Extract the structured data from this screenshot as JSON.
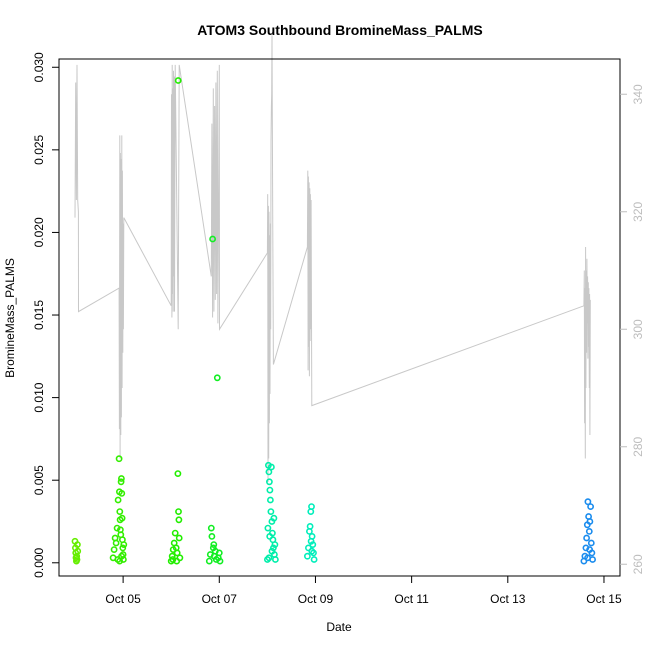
{
  "chart_data": {
    "type": "scatter",
    "title": "ATOM3 Southbound BromineMass_PALMS",
    "xlabel": "Date",
    "ylabel": "BromineMass_PALMS",
    "xlim": [
      "2017-10-03T16:00",
      "2017-10-15T08:00"
    ],
    "ylim": [
      -0.0008,
      0.0305
    ],
    "xticks": [
      {
        "date": "2017-10-05",
        "label": "Oct 05"
      },
      {
        "date": "2017-10-07",
        "label": "Oct 07"
      },
      {
        "date": "2017-10-09",
        "label": "Oct 09"
      },
      {
        "date": "2017-10-11",
        "label": "Oct 11"
      },
      {
        "date": "2017-10-13",
        "label": "Oct 13"
      },
      {
        "date": "2017-10-15",
        "label": "Oct 15"
      }
    ],
    "yticks": [
      {
        "value": 0.0,
        "label": "0.000"
      },
      {
        "value": 0.005,
        "label": "0.005"
      },
      {
        "value": 0.01,
        "label": "0.010"
      },
      {
        "value": 0.015,
        "label": "0.015"
      },
      {
        "value": 0.02,
        "label": "0.020"
      },
      {
        "value": 0.025,
        "label": "0.025"
      },
      {
        "value": 0.03,
        "label": "0.030"
      }
    ],
    "y2lim": [
      258,
      346
    ],
    "y2ticks": [
      {
        "value": 260,
        "label": "260"
      },
      {
        "value": 280,
        "label": "280"
      },
      {
        "value": 300,
        "label": "300"
      },
      {
        "value": 320,
        "label": "320"
      },
      {
        "value": 340,
        "label": "340"
      }
    ],
    "grid": false,
    "colors": {
      "secondary_line": "#c8c8c8",
      "axis": "#000000",
      "right_axis": "#bdbdbd"
    },
    "series": [
      {
        "color": "#66ee00",
        "points": [
          [
            "2017-10-04T00:00",
            0.0013
          ],
          [
            "2017-10-04T00:10",
            0.0009
          ],
          [
            "2017-10-04T00:20",
            0.0006
          ],
          [
            "2017-10-04T00:30",
            0.0003
          ],
          [
            "2017-10-04T00:40",
            0.0001
          ],
          [
            "2017-10-04T00:50",
            0.0004
          ],
          [
            "2017-10-04T01:00",
            0.0002
          ],
          [
            "2017-10-04T01:10",
            0.0011
          ],
          [
            "2017-10-04T01:20",
            0.0007
          ]
        ]
      },
      {
        "color": "#33ee00",
        "points": [
          [
            "2017-10-04T19:00",
            0.0003
          ],
          [
            "2017-10-04T19:30",
            0.0008
          ],
          [
            "2017-10-04T20:00",
            0.0015
          ],
          [
            "2017-10-04T20:30",
            0.0012
          ],
          [
            "2017-10-04T21:00",
            0.0021
          ],
          [
            "2017-10-04T21:30",
            0.0038
          ],
          [
            "2017-10-04T22:00",
            0.0063
          ],
          [
            "2017-10-04T22:10",
            0.0043
          ],
          [
            "2017-10-04T22:20",
            0.0031
          ],
          [
            "2017-10-04T22:30",
            0.0026
          ],
          [
            "2017-10-04T22:40",
            0.002
          ],
          [
            "2017-10-04T22:50",
            0.0017
          ],
          [
            "2017-10-04T23:00",
            0.0049
          ],
          [
            "2017-10-04T23:10",
            0.0051
          ],
          [
            "2017-10-04T23:20",
            0.0042
          ],
          [
            "2017-10-04T23:30",
            0.0027
          ],
          [
            "2017-10-04T23:40",
            0.0014
          ],
          [
            "2017-10-04T23:50",
            0.0009
          ],
          [
            "2017-10-05T00:00",
            0.0005
          ],
          [
            "2017-10-05T00:10",
            0.0002
          ],
          [
            "2017-10-05T00:20",
            0.0011
          ],
          [
            "2017-10-04T21:20",
            0.0002
          ],
          [
            "2017-10-04T22:15",
            0.0001
          ],
          [
            "2017-10-04T23:15",
            0.0004
          ]
        ]
      },
      {
        "color": "#22ee00",
        "points": [
          [
            "2017-10-06T00:00",
            0.0001
          ],
          [
            "2017-10-06T00:30",
            0.0004
          ],
          [
            "2017-10-06T01:00",
            0.0008
          ],
          [
            "2017-10-06T01:30",
            0.0012
          ],
          [
            "2017-10-06T02:00",
            0.0018
          ],
          [
            "2017-10-06T02:30",
            0.0009
          ],
          [
            "2017-10-06T03:00",
            0.0006
          ],
          [
            "2017-10-06T03:20",
            0.0054
          ],
          [
            "2017-10-06T03:30",
            0.0292
          ],
          [
            "2017-10-06T03:40",
            0.0031
          ],
          [
            "2017-10-06T03:50",
            0.0026
          ],
          [
            "2017-10-06T04:00",
            0.0015
          ],
          [
            "2017-10-06T04:20",
            0.0003
          ],
          [
            "2017-10-06T00:50",
            0.0002
          ],
          [
            "2017-10-06T02:45",
            0.0001
          ]
        ]
      },
      {
        "color": "#11ee22",
        "points": [
          [
            "2017-10-06T19:00",
            0.0001
          ],
          [
            "2017-10-06T19:30",
            0.0005
          ],
          [
            "2017-10-06T20:00",
            0.0021
          ],
          [
            "2017-10-06T20:20",
            0.0016
          ],
          [
            "2017-10-06T20:40",
            0.0196
          ],
          [
            "2017-10-06T21:00",
            0.0009
          ],
          [
            "2017-10-06T21:30",
            0.0004
          ],
          [
            "2017-10-06T22:00",
            0.0007
          ],
          [
            "2017-10-06T23:00",
            0.0112
          ],
          [
            "2017-10-06T23:30",
            0.0003
          ],
          [
            "2017-10-07T00:00",
            0.0006
          ],
          [
            "2017-10-07T00:20",
            0.0001
          ],
          [
            "2017-10-06T22:30",
            0.0002
          ],
          [
            "2017-10-06T21:15",
            0.0011
          ]
        ]
      },
      {
        "color": "#00eeaa",
        "points": [
          [
            "2017-10-08T00:00",
            0.0002
          ],
          [
            "2017-10-08T00:15",
            0.0021
          ],
          [
            "2017-10-08T00:30",
            0.0059
          ],
          [
            "2017-10-08T00:45",
            0.0055
          ],
          [
            "2017-10-08T01:00",
            0.0049
          ],
          [
            "2017-10-08T01:15",
            0.0044
          ],
          [
            "2017-10-08T01:30",
            0.0038
          ],
          [
            "2017-10-08T01:45",
            0.0031
          ],
          [
            "2017-10-08T02:00",
            0.0058
          ],
          [
            "2017-10-08T02:15",
            0.0025
          ],
          [
            "2017-10-08T02:30",
            0.0018
          ],
          [
            "2017-10-08T02:45",
            0.0014
          ],
          [
            "2017-10-08T03:00",
            0.0009
          ],
          [
            "2017-10-08T03:15",
            0.0027
          ],
          [
            "2017-10-08T03:30",
            0.0005
          ],
          [
            "2017-10-08T03:45",
            0.0011
          ],
          [
            "2017-10-08T04:00",
            0.0002
          ],
          [
            "2017-10-08T01:10",
            0.0016
          ],
          [
            "2017-10-08T02:20",
            0.0007
          ],
          [
            "2017-10-08T00:50",
            0.0003
          ]
        ]
      },
      {
        "color": "#00eebb",
        "points": [
          [
            "2017-10-08T20:00",
            0.0004
          ],
          [
            "2017-10-08T20:30",
            0.0009
          ],
          [
            "2017-10-08T21:00",
            0.0019
          ],
          [
            "2017-10-08T21:20",
            0.0022
          ],
          [
            "2017-10-08T21:40",
            0.0031
          ],
          [
            "2017-10-08T22:00",
            0.0034
          ],
          [
            "2017-10-08T22:20",
            0.0016
          ],
          [
            "2017-10-08T22:40",
            0.0011
          ],
          [
            "2017-10-08T23:00",
            0.0006
          ],
          [
            "2017-10-08T23:20",
            0.0002
          ],
          [
            "2017-10-08T21:50",
            0.0013
          ],
          [
            "2017-10-08T22:10",
            0.0007
          ]
        ]
      },
      {
        "color": "#1a8cee",
        "points": [
          [
            "2017-10-14T14:00",
            0.0001
          ],
          [
            "2017-10-14T14:30",
            0.0004
          ],
          [
            "2017-10-14T15:00",
            0.0009
          ],
          [
            "2017-10-14T15:20",
            0.0015
          ],
          [
            "2017-10-14T15:40",
            0.0023
          ],
          [
            "2017-10-14T16:00",
            0.0037
          ],
          [
            "2017-10-14T16:20",
            0.0028
          ],
          [
            "2017-10-14T16:40",
            0.0019
          ],
          [
            "2017-10-14T17:00",
            0.0025
          ],
          [
            "2017-10-14T17:20",
            0.0034
          ],
          [
            "2017-10-14T17:40",
            0.0012
          ],
          [
            "2017-10-14T18:00",
            0.0006
          ],
          [
            "2017-10-14T18:20",
            0.0002
          ],
          [
            "2017-10-14T15:50",
            0.0003
          ],
          [
            "2017-10-14T16:50",
            0.0008
          ]
        ]
      }
    ],
    "secondary_line": {
      "axis": "right",
      "color": "#c8c8c8",
      "points": [
        [
          "2017-10-04T00:00",
          319
        ],
        [
          "2017-10-04T00:20",
          342
        ],
        [
          "2017-10-04T00:40",
          322
        ],
        [
          "2017-10-04T01:00",
          345
        ],
        [
          "2017-10-04T01:20",
          322
        ],
        [
          "2017-10-04T01:40",
          320
        ],
        [
          "2017-10-04T01:45",
          303
        ],
        [
          "2017-10-04T22:00",
          307
        ],
        [
          "2017-10-04T22:10",
          283
        ],
        [
          "2017-10-04T22:20",
          333
        ],
        [
          "2017-10-04T22:30",
          278
        ],
        [
          "2017-10-04T22:40",
          330
        ],
        [
          "2017-10-04T22:50",
          282
        ],
        [
          "2017-10-04T23:00",
          329
        ],
        [
          "2017-10-04T23:10",
          285
        ],
        [
          "2017-10-04T23:20",
          333
        ],
        [
          "2017-10-04T23:30",
          290
        ],
        [
          "2017-10-04T23:40",
          327
        ],
        [
          "2017-10-04T23:50",
          296
        ],
        [
          "2017-10-05T00:00",
          318
        ],
        [
          "2017-10-05T00:10",
          300
        ],
        [
          "2017-10-05T00:20",
          319
        ],
        [
          "2017-10-06T00:00",
          304
        ],
        [
          "2017-10-06T00:10",
          340
        ],
        [
          "2017-10-06T00:20",
          302
        ],
        [
          "2017-10-06T00:30",
          345
        ],
        [
          "2017-10-06T00:40",
          306
        ],
        [
          "2017-10-06T00:50",
          341
        ],
        [
          "2017-10-06T01:00",
          303
        ],
        [
          "2017-10-06T01:10",
          344
        ],
        [
          "2017-10-06T01:20",
          309
        ],
        [
          "2017-10-06T01:30",
          343
        ],
        [
          "2017-10-06T01:40",
          303
        ],
        [
          "2017-10-06T02:00",
          345
        ],
        [
          "2017-10-06T03:30",
          300
        ],
        [
          "2017-10-06T04:00",
          345
        ],
        [
          "2017-10-06T20:00",
          309
        ],
        [
          "2017-10-06T20:20",
          335
        ],
        [
          "2017-10-06T20:40",
          302
        ],
        [
          "2017-10-06T21:00",
          341
        ],
        [
          "2017-10-06T21:20",
          303
        ],
        [
          "2017-10-06T21:40",
          338
        ],
        [
          "2017-10-06T22:00",
          305
        ],
        [
          "2017-10-06T22:20",
          342
        ],
        [
          "2017-10-06T22:40",
          306
        ],
        [
          "2017-10-06T23:00",
          344
        ],
        [
          "2017-10-06T23:20",
          301
        ],
        [
          "2017-10-07T00:00",
          345
        ],
        [
          "2017-10-07T00:05",
          300
        ],
        [
          "2017-10-08T00:00",
          313
        ],
        [
          "2017-10-08T00:10",
          323
        ],
        [
          "2017-10-08T00:20",
          274
        ],
        [
          "2017-10-08T00:30",
          321
        ],
        [
          "2017-10-08T00:40",
          278
        ],
        [
          "2017-10-08T00:50",
          320
        ],
        [
          "2017-10-08T01:00",
          284
        ],
        [
          "2017-10-08T01:10",
          316
        ],
        [
          "2017-10-08T01:20",
          289
        ],
        [
          "2017-10-08T01:30",
          318
        ],
        [
          "2017-10-08T01:40",
          300
        ],
        [
          "2017-10-08T01:50",
          332
        ],
        [
          "2017-10-08T02:00",
          338
        ],
        [
          "2017-10-08T02:10",
          340
        ],
        [
          "2017-10-08T02:20",
          350
        ],
        [
          "2017-10-08T02:40",
          320
        ],
        [
          "2017-10-08T03:00",
          294
        ],
        [
          "2017-10-08T20:00",
          314
        ],
        [
          "2017-10-08T20:10",
          327
        ],
        [
          "2017-10-08T20:20",
          293
        ],
        [
          "2017-10-08T20:30",
          326
        ],
        [
          "2017-10-08T20:40",
          297
        ],
        [
          "2017-10-08T20:50",
          325
        ],
        [
          "2017-10-08T21:00",
          292
        ],
        [
          "2017-10-08T21:10",
          324
        ],
        [
          "2017-10-08T21:20",
          298
        ],
        [
          "2017-10-08T21:30",
          323
        ],
        [
          "2017-10-08T21:40",
          300
        ],
        [
          "2017-10-08T21:50",
          322
        ],
        [
          "2017-10-08T22:00",
          302
        ],
        [
          "2017-10-08T22:10",
          287
        ],
        [
          "2017-10-14T14:00",
          304
        ],
        [
          "2017-10-14T14:10",
          310
        ],
        [
          "2017-10-14T14:20",
          284
        ],
        [
          "2017-10-14T14:30",
          307
        ],
        [
          "2017-10-14T14:40",
          278
        ],
        [
          "2017-10-14T14:50",
          314
        ],
        [
          "2017-10-14T15:00",
          290
        ],
        [
          "2017-10-14T15:10",
          310
        ],
        [
          "2017-10-14T15:20",
          296
        ],
        [
          "2017-10-14T15:30",
          312
        ],
        [
          "2017-10-14T15:40",
          301
        ],
        [
          "2017-10-14T15:50",
          309
        ],
        [
          "2017-10-14T16:00",
          295
        ],
        [
          "2017-10-14T16:10",
          308
        ],
        [
          "2017-10-14T16:20",
          297
        ],
        [
          "2017-10-14T16:30",
          307
        ],
        [
          "2017-10-14T16:40",
          290
        ],
        [
          "2017-10-14T16:50",
          306
        ],
        [
          "2017-10-14T17:00",
          282
        ],
        [
          "2017-10-14T17:10",
          305
        ]
      ]
    }
  }
}
